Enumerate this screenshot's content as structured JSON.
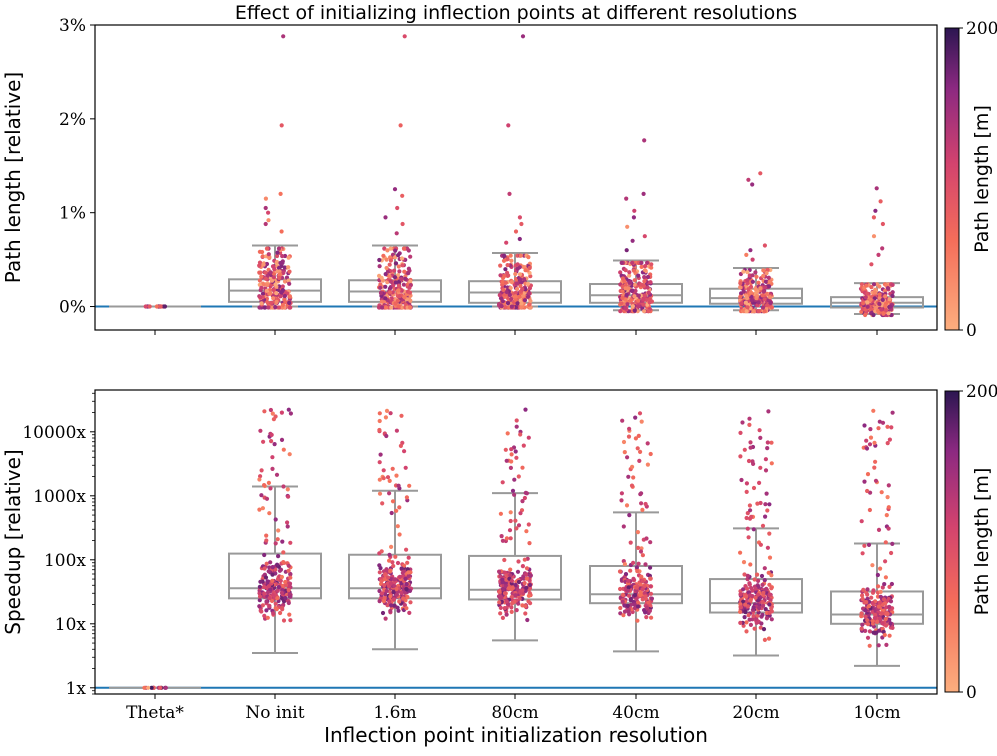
{
  "chart_data": [
    {
      "type": "box",
      "title": "Effect of initializing inflection points at different resolutions",
      "xlabel": "",
      "ylabel": "Path length [relative]",
      "yscale": "linear",
      "ylim": [
        -0.25,
        3.0
      ],
      "yticks": [
        0,
        1,
        2,
        3
      ],
      "ytick_labels": [
        "0%",
        "1%",
        "2%",
        "3%"
      ],
      "reference_line": 0,
      "categories": [
        "Theta*",
        "No init",
        "1.6m",
        "80cm",
        "40cm",
        "20cm",
        "10cm"
      ],
      "boxes": [
        {
          "q1": 0,
          "median": 0,
          "q3": 0,
          "whislo": 0,
          "whishi": 0
        },
        {
          "q1": 0.05,
          "median": 0.17,
          "q3": 0.29,
          "whislo": 0,
          "whishi": 0.65
        },
        {
          "q1": 0.05,
          "median": 0.16,
          "q3": 0.28,
          "whislo": 0,
          "whishi": 0.65
        },
        {
          "q1": 0.04,
          "median": 0.15,
          "q3": 0.27,
          "whislo": 0,
          "whishi": 0.57
        },
        {
          "q1": 0.04,
          "median": 0.12,
          "q3": 0.24,
          "whislo": -0.04,
          "whishi": 0.49
        },
        {
          "q1": 0.03,
          "median": 0.09,
          "q3": 0.19,
          "whislo": -0.04,
          "whishi": 0.41
        },
        {
          "q1": -0.01,
          "median": 0.04,
          "q3": 0.1,
          "whislo": -0.08,
          "whishi": 0.25
        }
      ],
      "outliers": [
        [],
        [
          2.88,
          1.93,
          1.2,
          1.15,
          1.05,
          1.0,
          0.92,
          0.88,
          0.8
        ],
        [
          2.88,
          1.93,
          1.25,
          1.18,
          1.05,
          0.95,
          0.88,
          0.78
        ],
        [
          2.88,
          1.93,
          1.2,
          0.95,
          0.88,
          0.8,
          0.72,
          0.68
        ],
        [
          1.77,
          1.2,
          1.15,
          1.02,
          0.95,
          0.85,
          0.75,
          0.7,
          0.6
        ],
        [
          1.42,
          1.35,
          1.3,
          0.65,
          0.6,
          0.55,
          0.5
        ],
        [
          1.26,
          1.12,
          1.02,
          0.95,
          0.88,
          0.75,
          0.62,
          0.55,
          0.45
        ]
      ],
      "colorbar": {
        "label": "Path length [m]",
        "min": 0,
        "max": 200,
        "ticks": [
          0,
          200
        ]
      }
    },
    {
      "type": "box",
      "title": "",
      "xlabel": "Inflection point initialization resolution",
      "ylabel": "Speedup [relative]",
      "yscale": "log",
      "ylim": [
        0.8,
        45000
      ],
      "yticks": [
        1,
        10,
        100,
        1000,
        10000
      ],
      "ytick_labels": [
        "1x",
        "10x",
        "100x",
        "1000x",
        "10000x"
      ],
      "reference_line": 1,
      "categories": [
        "Theta*",
        "No init",
        "1.6m",
        "80cm",
        "40cm",
        "20cm",
        "10cm"
      ],
      "boxes": [
        {
          "q1": 1,
          "median": 1,
          "q3": 1,
          "whislo": 1,
          "whishi": 1
        },
        {
          "q1": 25,
          "median": 36,
          "q3": 125,
          "whislo": 3.5,
          "whishi": 1400
        },
        {
          "q1": 25,
          "median": 36,
          "q3": 120,
          "whislo": 4,
          "whishi": 1200
        },
        {
          "q1": 24,
          "median": 34,
          "q3": 115,
          "whislo": 5.5,
          "whishi": 1100
        },
        {
          "q1": 21,
          "median": 29,
          "q3": 80,
          "whislo": 3.7,
          "whishi": 550
        },
        {
          "q1": 15,
          "median": 21,
          "q3": 50,
          "whislo": 3.2,
          "whishi": 310
        },
        {
          "q1": 10,
          "median": 14,
          "q3": 32,
          "whislo": 2.2,
          "whishi": 180
        }
      ],
      "colorbar": {
        "label": "Path length [m]",
        "min": 0,
        "max": 200,
        "ticks": [
          0,
          200
        ]
      }
    }
  ],
  "colors": {
    "reference_line": "#1f77b4",
    "box": "#999999",
    "colormap": [
      "#fcae7e",
      "#f46d5a",
      "#d3436e",
      "#8c2981",
      "#2c1651"
    ]
  }
}
